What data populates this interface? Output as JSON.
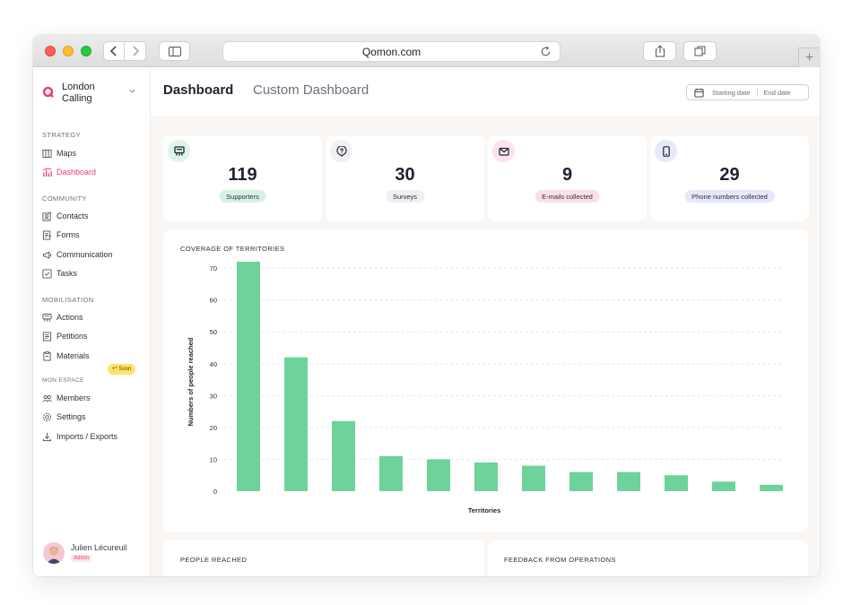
{
  "browser": {
    "url": "Qomon.com"
  },
  "sidebar": {
    "org_name": "London Calling",
    "sections": [
      {
        "title": "STRATEGY",
        "items": [
          {
            "label": "Maps",
            "icon": "map-icon"
          },
          {
            "label": "Dashboard",
            "icon": "chart-icon",
            "active": true
          }
        ]
      },
      {
        "title": "COMMUNITY",
        "items": [
          {
            "label": "Contacts",
            "icon": "contacts-icon"
          },
          {
            "label": "Forms",
            "icon": "form-icon"
          },
          {
            "label": "Communication",
            "icon": "megaphone-icon"
          },
          {
            "label": "Tasks",
            "icon": "checkbox-icon"
          }
        ]
      },
      {
        "title": "MOBILISATION",
        "items": [
          {
            "label": "Actions",
            "icon": "flag-icon"
          },
          {
            "label": "Petitions",
            "icon": "document-icon",
            "badge": "+* Soon"
          },
          {
            "label": "Materials",
            "icon": "clipboard-icon"
          }
        ]
      },
      {
        "title": "MON ESPACE",
        "items": [
          {
            "label": "Members",
            "icon": "members-icon"
          },
          {
            "label": "Settings",
            "icon": "gear-icon"
          },
          {
            "label": "Imports / Exports",
            "icon": "download-icon"
          }
        ]
      }
    ],
    "user": {
      "name": "Julien Lécureuil",
      "role": "Admin"
    }
  },
  "tabs": {
    "active": "Dashboard",
    "inactive": "Custom Dashboard"
  },
  "date_range": {
    "start_placeholder": "Starting date",
    "end_placeholder": "End date"
  },
  "stats": [
    {
      "value": "119",
      "label": "Supporters",
      "icon": "flag-icon",
      "icon_bg": "#dff3e8",
      "pill_bg": "#d7f2e3"
    },
    {
      "value": "30",
      "label": "Surveys",
      "icon": "question-icon",
      "icon_bg": "#f1f1f3",
      "pill_bg": "#eeeff2"
    },
    {
      "value": "9",
      "label": "E-mails collected",
      "icon": "mail-icon",
      "icon_bg": "#fde4ec",
      "pill_bg": "#fbe0e9"
    },
    {
      "value": "29",
      "label": "Phone numbers collected",
      "icon": "phone-icon",
      "icon_bg": "#e6e9fa",
      "pill_bg": "#e5e8f8"
    }
  ],
  "coverage_panel": {
    "title": "COVERAGE OF TERRITORIES"
  },
  "chart_data": {
    "type": "bar",
    "title": "",
    "xlabel": "Territories",
    "ylabel": "Numbers of people reached",
    "yticks": [
      0,
      10,
      20,
      30,
      40,
      50,
      60,
      70
    ],
    "ylim": [
      0,
      72
    ],
    "values": [
      72,
      42,
      22,
      11,
      10,
      9,
      8,
      6,
      6,
      5,
      3,
      2
    ],
    "bar_color": "#6dd39b",
    "grid": true
  },
  "bottom_panels": {
    "people_reached": "PEOPLE REACHED",
    "feedback": "FEEDBACK FROM OPERATIONS"
  },
  "colors": {
    "accent": "#ef3d6b",
    "bar": "#6dd39b"
  }
}
